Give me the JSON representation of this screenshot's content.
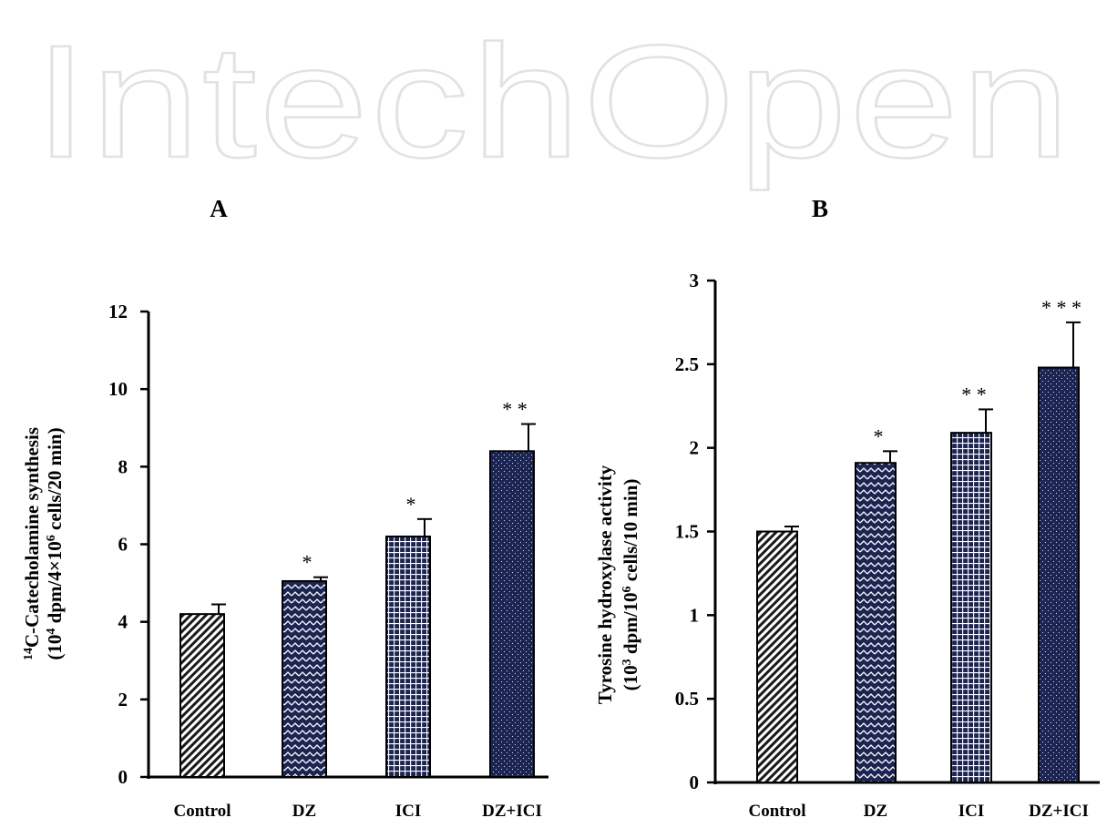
{
  "watermark": "IntechOpen",
  "colors": {
    "bar_dark": "#1c2452",
    "bar_light": "#ffffff",
    "axis": "#000000",
    "watermark": "#e2e2e2"
  },
  "chart_data": [
    {
      "type": "bar",
      "panel_label": "A",
      "categories": [
        "Control",
        "DZ",
        "ICI",
        "DZ+ICI"
      ],
      "values": [
        4.2,
        5.05,
        6.2,
        8.4
      ],
      "errors": [
        0.25,
        0.1,
        0.45,
        0.7
      ],
      "annotations": [
        "",
        "*",
        "*",
        "* *"
      ],
      "patterns": [
        "diagonal-hatch",
        "zigzag",
        "grid",
        "dots"
      ],
      "ylabel_line1": "14C-Catecholamine  synthesis",
      "ylabel_line2": "(104 dpm/4×106 cells/20 min)",
      "ylim": [
        0,
        12
      ],
      "yticks": [
        0,
        2,
        4,
        6,
        8,
        10,
        12
      ],
      "ytick_labels": [
        "0",
        "2",
        "4",
        "6",
        "8",
        "10",
        "12"
      ]
    },
    {
      "type": "bar",
      "panel_label": "B",
      "categories": [
        "Control",
        "DZ",
        "ICI",
        "DZ+ICI"
      ],
      "values": [
        1.5,
        1.91,
        2.09,
        2.48
      ],
      "errors": [
        0.03,
        0.07,
        0.14,
        0.27
      ],
      "annotations": [
        "",
        "*",
        "* *",
        "* * *"
      ],
      "patterns": [
        "diagonal-hatch",
        "zigzag",
        "grid",
        "dots"
      ],
      "ylabel_line1": "Tyrosine hydroxylase activity",
      "ylabel_line2": "(103 dpm/106 cells/10 min)",
      "ylim": [
        0,
        3
      ],
      "yticks": [
        0,
        0.5,
        1,
        1.5,
        2,
        2.5,
        3
      ],
      "ytick_labels": [
        "0",
        "0.5",
        "1",
        "1.5",
        "2",
        "2.5",
        "3"
      ]
    }
  ]
}
